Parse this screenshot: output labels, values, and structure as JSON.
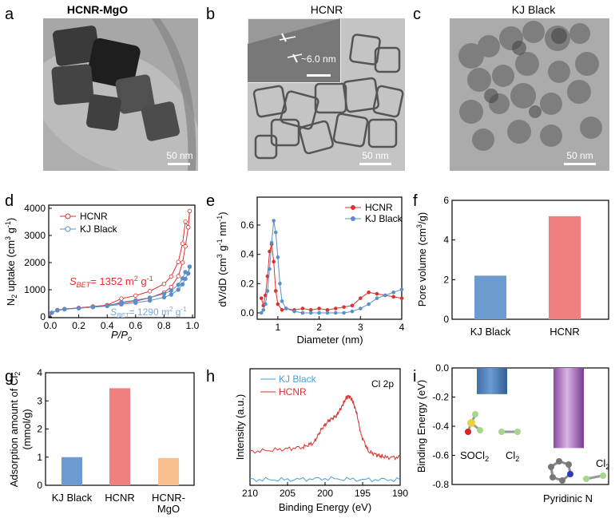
{
  "colors": {
    "red": "#e0312e",
    "blue": "#5b8fc9",
    "cyan": "#4a9fd8",
    "bar_blue": "#6b9bd1",
    "bar_red": "#f08080",
    "bar_orange": "#f9c08f",
    "purple": "#a060b8"
  },
  "panels": {
    "a": {
      "letter": "a",
      "title": "HCNR-MgO",
      "scale": "50 nm"
    },
    "b": {
      "letter": "b",
      "title": "HCNR",
      "scale": "50 nm",
      "inset_label": "~6.0 nm"
    },
    "c": {
      "letter": "c",
      "title": "KJ Black",
      "scale": "50 nm"
    }
  },
  "chart_data": [
    {
      "panel": "d",
      "letter": "d",
      "type": "line",
      "xlabel": "P/Po",
      "ylabel": "N2 uptake (cm3 g-1)",
      "xlim": [
        0,
        1.0
      ],
      "ylim": [
        0,
        4000
      ],
      "xticks": [
        "0.0",
        "0.2",
        "0.4",
        "0.6",
        "0.8",
        "1.0"
      ],
      "yticks": [
        "0",
        "1000",
        "2000",
        "3000",
        "4000"
      ],
      "legend": [
        "HCNR",
        "KJ Black"
      ],
      "annotations": {
        "hcnr_bet": "= 1352 m",
        "kj_bet": "= 1290 m",
        "s_bet": "S",
        "bet_sub": "BET",
        "exp2": "2",
        "g": " g",
        "exp_m1": "-1"
      },
      "series": [
        {
          "name": "HCNR",
          "x": [
            0.01,
            0.05,
            0.1,
            0.2,
            0.3,
            0.4,
            0.5,
            0.6,
            0.7,
            0.8,
            0.85,
            0.9,
            0.93,
            0.95,
            0.97,
            0.98
          ],
          "y": [
            150,
            250,
            290,
            330,
            380,
            430,
            500,
            580,
            700,
            900,
            1100,
            1500,
            2000,
            2600,
            3300,
            3900
          ]
        },
        {
          "name": "KJ Black",
          "x": [
            0.01,
            0.05,
            0.1,
            0.2,
            0.3,
            0.4,
            0.5,
            0.6,
            0.7,
            0.8,
            0.85,
            0.9,
            0.93,
            0.95,
            0.97,
            0.98
          ],
          "y": [
            150,
            240,
            280,
            320,
            360,
            400,
            460,
            520,
            600,
            720,
            820,
            1000,
            1200,
            1400,
            1600,
            1850
          ]
        }
      ]
    },
    {
      "panel": "e",
      "letter": "e",
      "type": "line",
      "xlabel": "Diameter (nm)",
      "ylabel": "dV/dD (cm3 g-1 nm-1)",
      "xlim": [
        0.5,
        4
      ],
      "ylim": [
        -0.05,
        0.7
      ],
      "xticks": [
        "1",
        "2",
        "3",
        "4"
      ],
      "yticks": [
        "0.0",
        "0.2",
        "0.4",
        "0.6"
      ],
      "legend": [
        "HCNR",
        "KJ Black"
      ],
      "series": [
        {
          "name": "HCNR",
          "x": [
            0.6,
            0.65,
            0.7,
            0.75,
            0.8,
            0.85,
            0.9,
            0.95,
            1.0,
            1.1,
            1.2,
            1.4,
            1.6,
            1.8,
            2.0,
            2.2,
            2.4,
            2.6,
            2.8,
            3.0,
            3.2,
            3.4,
            3.6,
            3.8,
            4.0
          ],
          "y": [
            0.1,
            0.05,
            0.12,
            0.25,
            0.42,
            0.47,
            0.35,
            0.15,
            0.06,
            0.02,
            0.03,
            0.02,
            0.03,
            0.02,
            0.03,
            0.02,
            0.03,
            0.04,
            0.05,
            0.1,
            0.14,
            0.13,
            0.12,
            0.11,
            0.1
          ]
        },
        {
          "name": "KJ Black",
          "x": [
            0.6,
            0.65,
            0.7,
            0.75,
            0.8,
            0.85,
            0.9,
            0.95,
            1.0,
            1.05,
            1.1,
            1.2,
            1.4,
            1.6,
            1.8,
            2.0,
            2.2,
            2.4,
            2.6,
            2.8,
            3.0,
            3.2,
            3.4,
            3.6,
            3.8,
            4.0
          ],
          "y": [
            0.0,
            0.02,
            0.06,
            0.15,
            0.3,
            0.48,
            0.63,
            0.55,
            0.38,
            0.2,
            0.08,
            0.03,
            0.01,
            0.0,
            0.0,
            0.0,
            0.0,
            0.0,
            0.0,
            0.01,
            0.03,
            0.06,
            0.1,
            0.12,
            0.14,
            0.16
          ]
        }
      ]
    },
    {
      "panel": "f",
      "letter": "f",
      "type": "bar",
      "ylabel": "Pore volume (cm3/g)",
      "categories": [
        "KJ Black",
        "HCNR"
      ],
      "values": [
        2.2,
        5.2
      ],
      "ylim": [
        0,
        6
      ],
      "yticks": [
        "0",
        "2",
        "4",
        "6"
      ]
    },
    {
      "panel": "g",
      "letter": "g",
      "type": "bar",
      "ylabel": "Adsorption amount of Cl2 (mmol/g)",
      "categories": [
        "KJ Black",
        "HCNR",
        "HCNR-MgO"
      ],
      "values": [
        1.0,
        3.45,
        0.97
      ],
      "ylim": [
        0,
        4
      ],
      "yticks": [
        "0",
        "1",
        "2",
        "3",
        "4"
      ]
    },
    {
      "panel": "h",
      "letter": "h",
      "type": "line",
      "xlabel": "Binding Energy (eV)",
      "ylabel": "Intensity (a.u.)",
      "xlim": [
        210,
        190
      ],
      "xticks": [
        "210",
        "205",
        "200",
        "195",
        "190"
      ],
      "legend": [
        "KJ Black",
        "HCNR"
      ],
      "annotation": "Cl 2p",
      "series": [
        {
          "name": "KJ Black",
          "x": [
            210,
            205,
            200,
            195,
            190
          ],
          "y": [
            0.05,
            0.05,
            0.06,
            0.05,
            0.05
          ]
        },
        {
          "name": "HCNR",
          "x": [
            210,
            206,
            203,
            201.5,
            200.5,
            199.5,
            198.5,
            197.8,
            197.2,
            196.8,
            196.3,
            195.8,
            195.2,
            194.2,
            193,
            192,
            190
          ],
          "y": [
            0.3,
            0.32,
            0.34,
            0.38,
            0.5,
            0.58,
            0.62,
            0.7,
            0.78,
            0.8,
            0.75,
            0.65,
            0.45,
            0.3,
            0.27,
            0.25,
            0.25
          ]
        }
      ]
    },
    {
      "panel": "i",
      "letter": "i",
      "type": "bar",
      "ylabel": "Binding Energy (eV)",
      "categories": [
        "SOCl2",
        "Pyridinic N"
      ],
      "values": [
        -0.18,
        -0.55
      ],
      "ylim": [
        -0.8,
        0.0
      ],
      "yticks": [
        "0.0",
        "-0.2",
        "-0.4",
        "-0.6",
        "-0.8"
      ],
      "labels": {
        "socl2": "SOCl",
        "cl2a": "Cl",
        "cl2b": "Cl",
        "sub2": "2",
        "pyridinic": "Pyridinic N"
      }
    }
  ]
}
